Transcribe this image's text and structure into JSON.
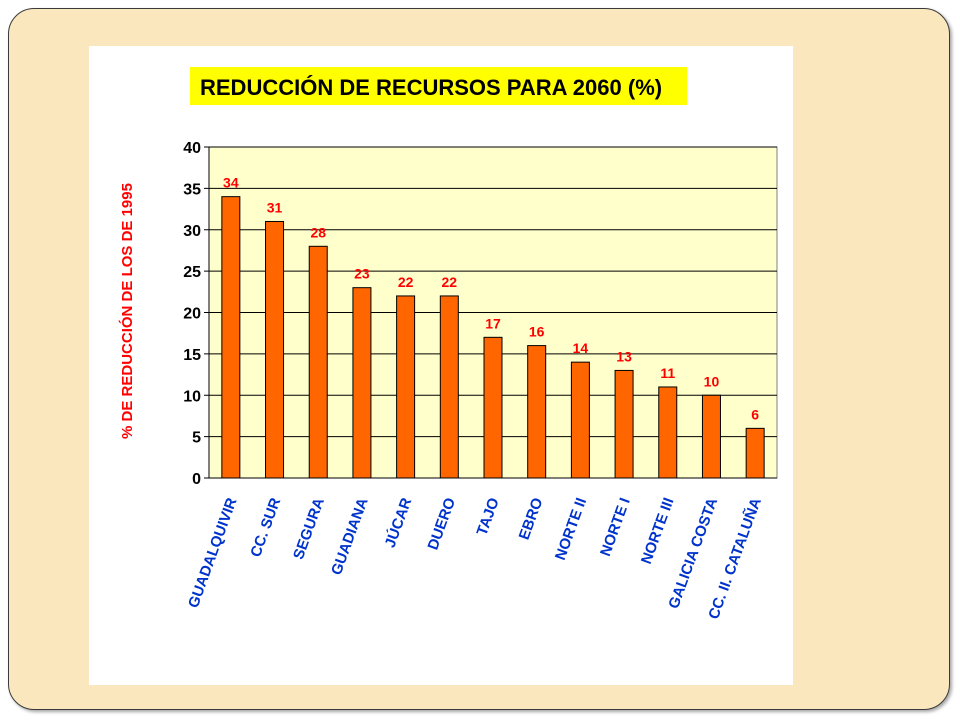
{
  "chart_data": {
    "type": "bar",
    "title": "REDUCCIÓN DE RECURSOS PARA 2060 (%)",
    "xlabel": "",
    "ylabel": "% DE REDUCCIÓN DE LOS  DE 1995",
    "ylim": [
      0,
      40
    ],
    "yticks": [
      "0",
      "5",
      "10",
      "15",
      "20",
      "25",
      "30",
      "35",
      "40"
    ],
    "grid": true,
    "categories": [
      "GUADALQUIVIR",
      "CC. SUR",
      "SEGURA",
      "GUADIANA",
      "JÚCAR",
      "DUERO",
      "TAJO",
      "EBRO",
      "NORTE II",
      "NORTE I",
      "NORTE III",
      "GALICIA COSTA",
      "CC. II. CATALUÑA"
    ],
    "values": [
      34,
      31,
      28,
      23,
      22,
      22,
      17,
      16,
      14,
      13,
      11,
      10,
      6
    ],
    "colors": {
      "bar": "#ff6600",
      "plot_bg": "#ffffcc",
      "title_bg": "#ffff00",
      "data_label": "#ff0000",
      "category_label": "#0033cc",
      "ylabel": "#ff0000"
    }
  }
}
